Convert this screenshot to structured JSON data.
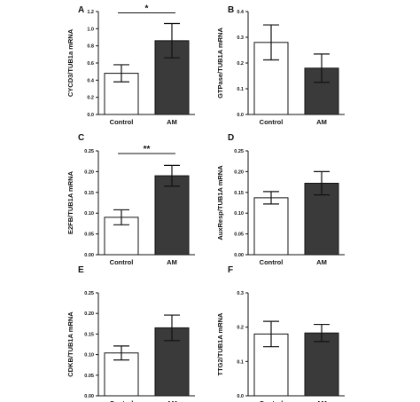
{
  "colors": {
    "control_fill": "#ffffff",
    "am_fill": "#3a3a3a",
    "stroke": "#111111"
  },
  "chart_data": [
    {
      "panel": "A",
      "type": "bar",
      "categories": [
        "Control",
        "AM"
      ],
      "values": [
        0.48,
        0.86
      ],
      "errors": [
        0.1,
        0.2
      ],
      "ylabel": "CYCD3/TUB1a mRNA",
      "ylim": [
        0,
        1.2
      ],
      "yticks": [
        "0.0",
        "0.2",
        "0.4",
        "0.6",
        "0.8",
        "1.0",
        "1.2"
      ],
      "grid": false,
      "significance": "*"
    },
    {
      "panel": "B",
      "type": "bar",
      "categories": [
        "Control",
        "AM"
      ],
      "values": [
        0.28,
        0.18
      ],
      "errors": [
        0.068,
        0.055
      ],
      "ylabel": "GTPase/TUB1A mRNA",
      "ylim": [
        0,
        0.4
      ],
      "yticks": [
        "0.0",
        "0.1",
        "0.2",
        "0.3",
        "0.4"
      ],
      "grid": false,
      "significance": ""
    },
    {
      "panel": "C",
      "type": "bar",
      "categories": [
        "Control",
        "AM"
      ],
      "values": [
        0.09,
        0.19
      ],
      "errors": [
        0.018,
        0.025
      ],
      "ylabel": "E2FB/TUB1A mRNA",
      "ylim": [
        0,
        0.25
      ],
      "yticks": [
        "0.00",
        "0.05",
        "0.10",
        "0.15",
        "0.20",
        "0.25"
      ],
      "grid": false,
      "significance": "**"
    },
    {
      "panel": "D",
      "type": "bar",
      "categories": [
        "Control",
        "AM"
      ],
      "values": [
        0.137,
        0.172
      ],
      "errors": [
        0.015,
        0.028
      ],
      "ylabel": "AuxResp/TUB1A mRNA",
      "ylim": [
        0,
        0.25
      ],
      "yticks": [
        "0.00",
        "0.05",
        "0.10",
        "0.15",
        "0.20",
        "0.25"
      ],
      "grid": false,
      "significance": ""
    },
    {
      "panel": "E",
      "type": "bar",
      "categories": [
        "Control",
        "AM"
      ],
      "values": [
        0.104,
        0.165
      ],
      "errors": [
        0.017,
        0.031
      ],
      "ylabel": "CDKB/TUB1A mRNA",
      "ylim": [
        0,
        0.25
      ],
      "yticks": [
        "0.00",
        "0.05",
        "0.10",
        "0.15",
        "0.20",
        "0.25"
      ],
      "grid": false,
      "significance": ""
    },
    {
      "panel": "F",
      "type": "bar",
      "categories": [
        "Control",
        "AM"
      ],
      "values": [
        0.18,
        0.183
      ],
      "errors": [
        0.037,
        0.025
      ],
      "ylabel": "TTG2/TUB1A mRNA",
      "ylim": [
        0,
        0.3
      ],
      "yticks": [
        "0.0",
        "0.1",
        "0.2",
        "0.3"
      ],
      "grid": false,
      "significance": ""
    }
  ]
}
